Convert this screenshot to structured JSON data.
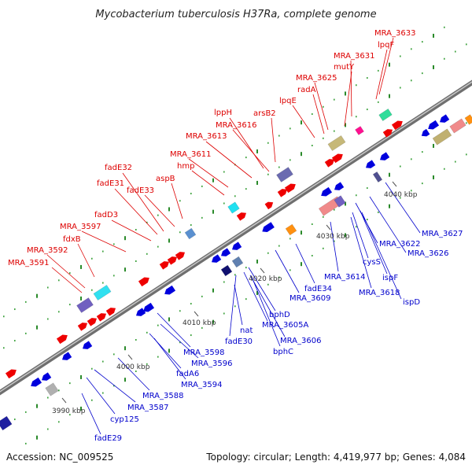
{
  "title": "Mycobacterium tuberculosis H37Ra, complete genome",
  "footer": {
    "accession": "Accession: NC_009525",
    "summary": "Topology: circular; Length: 4,419,977 bp; Genes: 4,084"
  },
  "colors": {
    "forward_label": "#dd0000",
    "reverse_label": "#0000cc",
    "forward_gene": "#ee0000",
    "reverse_gene": "#0000dd",
    "backbone": "#8a8a8a",
    "ruler_dots": "#2a8a2a"
  },
  "ticks": [
    "3990 kbp",
    "4000 kbp",
    "4010 kbp",
    "4020 kbp",
    "4030 kbp",
    "4040 kbp"
  ],
  "forward_labels": [
    "MRA_3633",
    "lpqF",
    "MRA_3631",
    "mutY",
    "MRA_3625",
    "radA",
    "lpqE",
    "arsB2",
    "lppH",
    "MRA_3616",
    "MRA_3613",
    "MRA_3611",
    "hmp",
    "aspB",
    "fadE32",
    "fadE31",
    "fadE33",
    "fadD3",
    "MRA_3597",
    "fdxB",
    "MRA_3592",
    "MRA_3591"
  ],
  "reverse_labels": [
    "MRA_3627",
    "MRA_3622",
    "MRA_3626",
    "cysS",
    "ispF",
    "MRA_3614",
    "MRA_3618",
    "ispD",
    "fadE34",
    "MRA_3609",
    "bphD",
    "MRA_3605A",
    "MRA_3606",
    "bphC",
    "nat",
    "fadE30",
    "MRA_3598",
    "MRA_3596",
    "fadA6",
    "MRA_3594",
    "MRA_3588",
    "MRA_3587",
    "cyp125",
    "fadE29"
  ]
}
